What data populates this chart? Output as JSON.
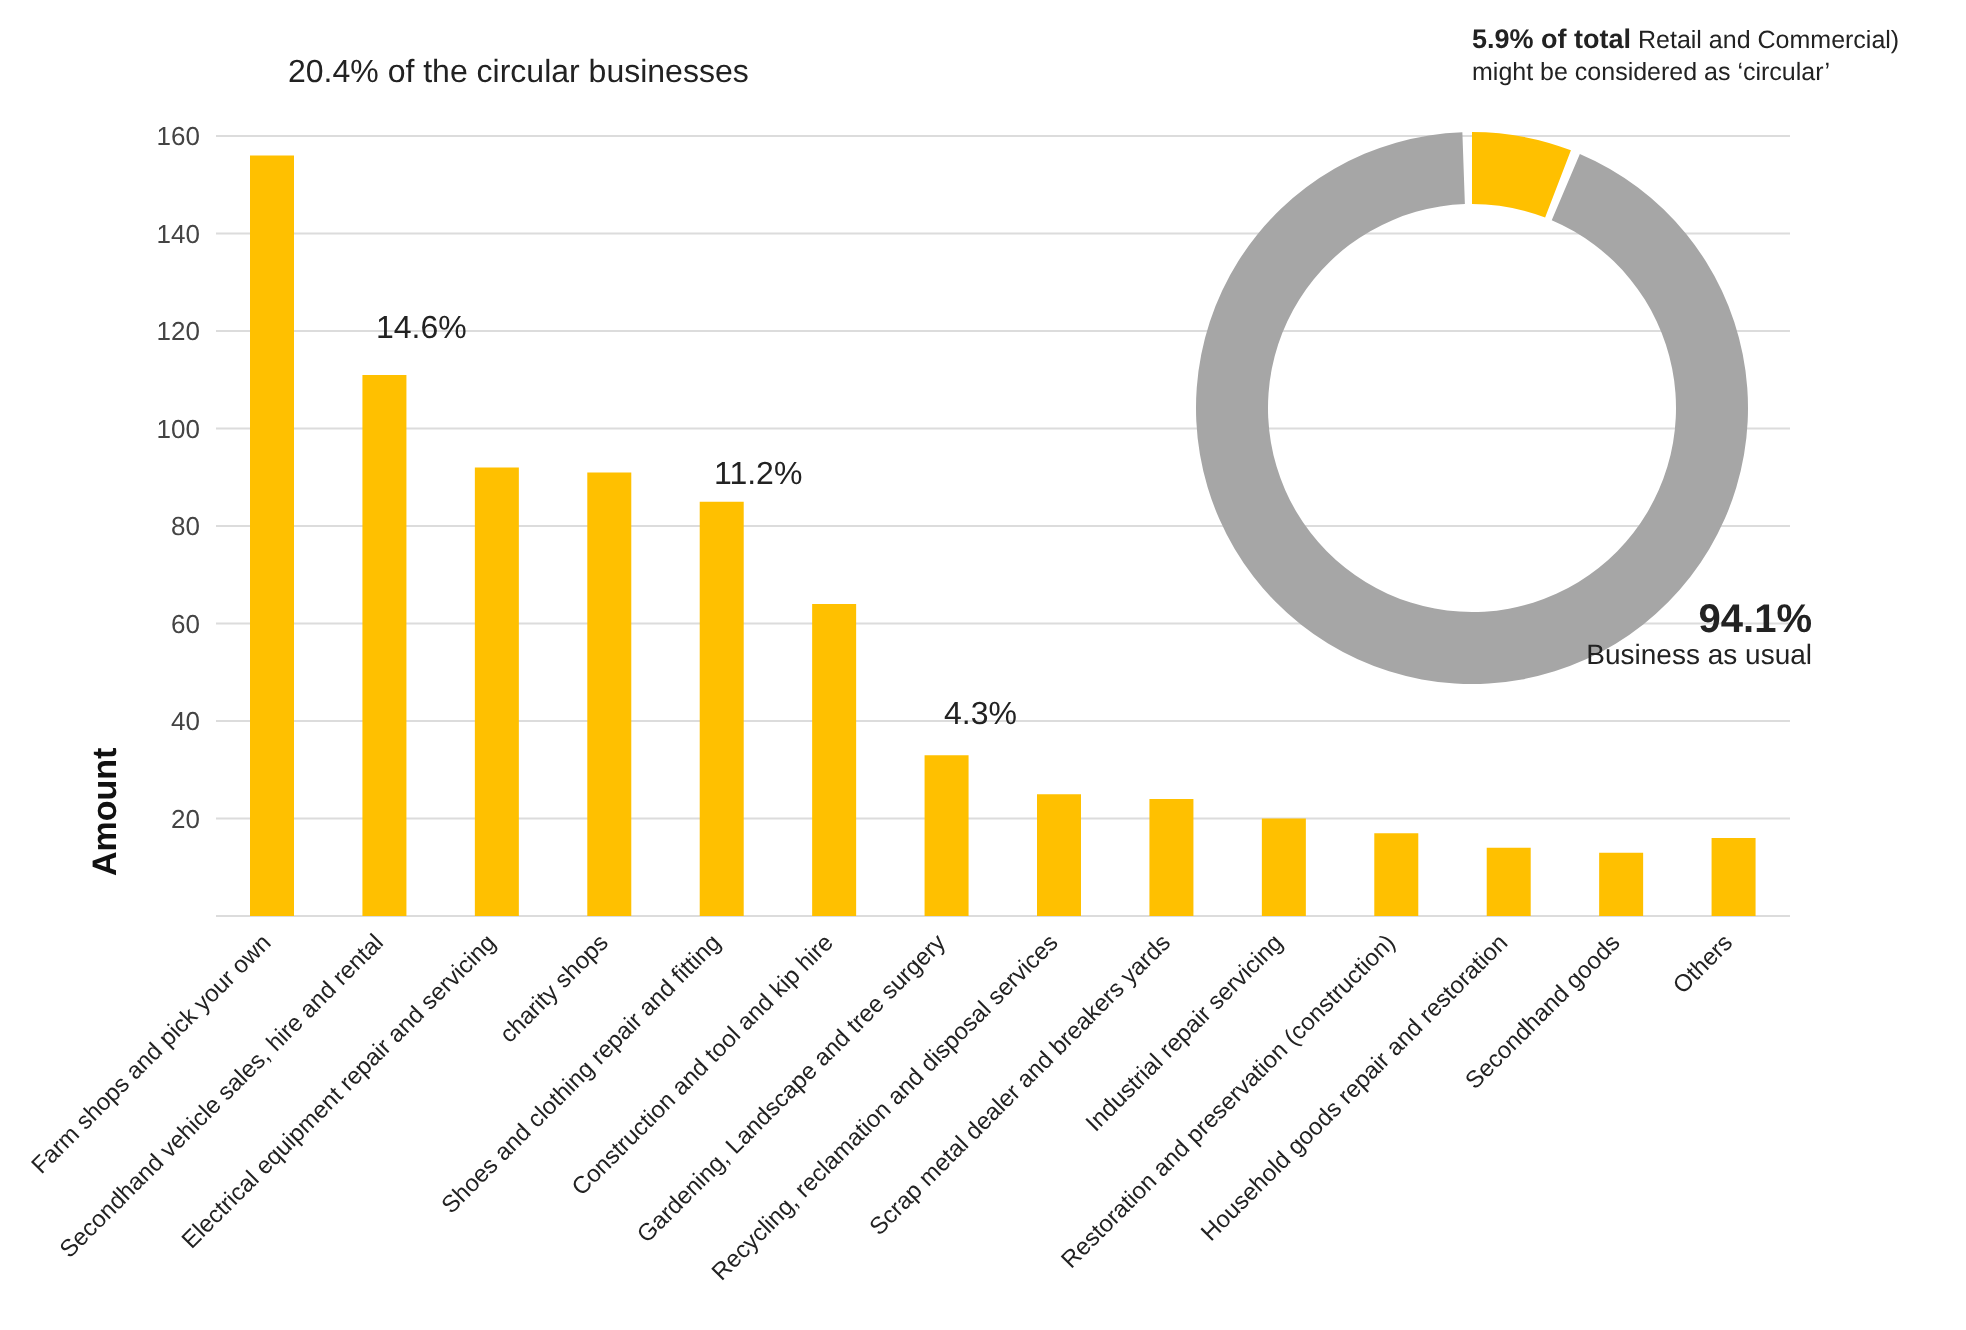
{
  "chart_data": [
    {
      "type": "bar",
      "ylabel": "Amount",
      "categories": [
        "Farm shops and pick your own",
        "Secondhand vehicle sales, hire and rental",
        "Electrical equipment repair and servicing",
        "charity shops",
        "Shoes and clothing repair and fitting",
        "Construction and tool and kip hire",
        "Gardening, Landscape and tree surgery",
        "Recycling, reclamation and disposal services",
        "Scrap metal dealer and breakers yards",
        "Industrial repair servicing",
        "Restoration and preservation (construction)",
        "Household goods repair and restoration",
        "Secondhand goods",
        "Others"
      ],
      "values": [
        156,
        111,
        92,
        91,
        85,
        64,
        33,
        25,
        24,
        20,
        17,
        14,
        13,
        16
      ],
      "annotations": [
        "20.4% of the circular businesses",
        "14.6%",
        "11.2%",
        "4.3%"
      ],
      "color": "#ffc000",
      "ylim": [
        0,
        160
      ],
      "yticks": [
        {
          "value": 0,
          "label": null
        },
        20,
        40,
        60,
        80,
        100,
        120,
        140,
        160
      ],
      "grid": "y"
    },
    {
      "type": "donut",
      "categories": [
        "Retail and Commercial) might be considered  as ‘circular’",
        "Business as usual"
      ],
      "values": [
        5.9,
        94.1
      ],
      "value_labels": [
        "5.9% of total",
        "94.1%"
      ],
      "colors": [
        "#ffc000",
        "#a6a6a6"
      ]
    }
  ]
}
